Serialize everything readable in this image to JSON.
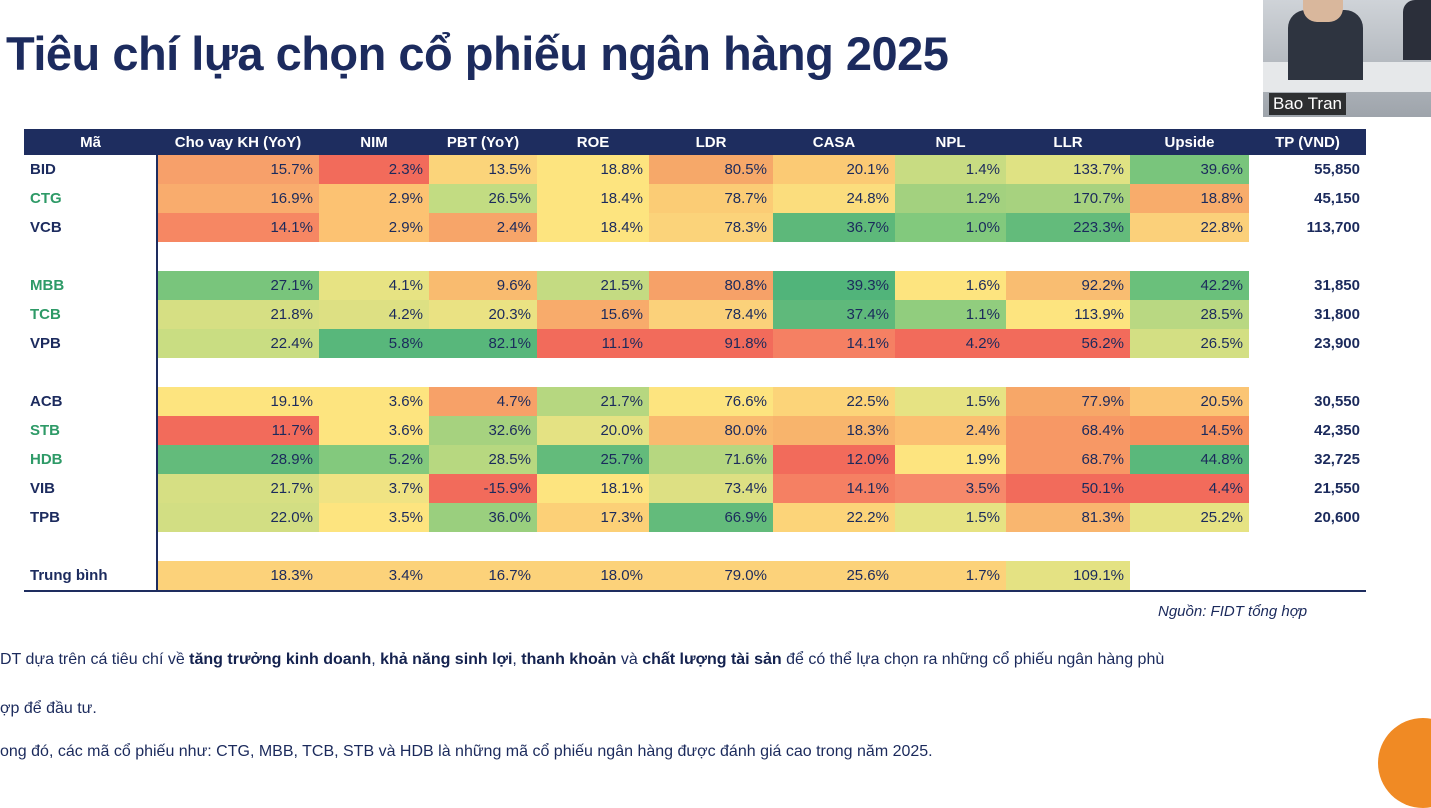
{
  "title": "Tiêu chí lựa chọn cổ phiếu ngân hàng 2025",
  "webcam": {
    "name": "Bao Tran"
  },
  "table": {
    "headers": [
      "Mã",
      "Cho vay KH (YoY)",
      "NIM",
      "PBT (YoY)",
      "ROE",
      "LDR",
      "CASA",
      "NPL",
      "LLR",
      "Upside",
      "TP (VND)"
    ],
    "groups": [
      [
        {
          "code": "BID",
          "code_color": "#1c2b5e",
          "values": [
            "15.7%",
            "2.3%",
            "13.5%",
            "18.8%",
            "80.5%",
            "20.1%",
            "1.4%",
            "133.7%",
            "39.6%"
          ],
          "colors": [
            "#f7a06a",
            "#f26b5b",
            "#fbd47a",
            "#fde47f",
            "#f6a869",
            "#fbca74",
            "#c8dc82",
            "#dfe283",
            "#79c57c"
          ],
          "tp": "55,850"
        },
        {
          "code": "CTG",
          "code_color": "#2e9a67",
          "values": [
            "16.9%",
            "2.9%",
            "26.5%",
            "18.4%",
            "78.7%",
            "24.8%",
            "1.2%",
            "170.7%",
            "18.8%"
          ],
          "colors": [
            "#f9ac6d",
            "#fcc272",
            "#c2dc82",
            "#fde47f",
            "#fbcc75",
            "#fbdd7d",
            "#a3d17f",
            "#a7d27f",
            "#f8ac6b"
          ],
          "tp": "45,150"
        },
        {
          "code": "VCB",
          "code_color": "#1c2b5e",
          "values": [
            "14.1%",
            "2.9%",
            "2.4%",
            "18.4%",
            "78.3%",
            "36.7%",
            "1.0%",
            "223.3%",
            "22.8%"
          ],
          "colors": [
            "#f68763",
            "#fcc272",
            "#f7a569",
            "#fde47f",
            "#fbd37a",
            "#5db87a",
            "#82c97d",
            "#63bb7b",
            "#fbd07a"
          ],
          "tp": "113,700"
        }
      ],
      [
        {
          "code": "MBB",
          "code_color": "#2e9a67",
          "values": [
            "27.1%",
            "4.1%",
            "9.6%",
            "21.5%",
            "80.8%",
            "39.3%",
            "1.6%",
            "92.2%",
            "42.2%"
          ],
          "colors": [
            "#79c57c",
            "#e7e383",
            "#f9bb6f",
            "#c4db82",
            "#f6a168",
            "#51b47a",
            "#fde47f",
            "#f9bd71",
            "#6ac07b"
          ],
          "tp": "31,850"
        },
        {
          "code": "TCB",
          "code_color": "#2e9a67",
          "values": [
            "21.8%",
            "4.2%",
            "20.3%",
            "15.6%",
            "78.4%",
            "37.4%",
            "1.1%",
            "113.9%",
            "28.5%"
          ],
          "colors": [
            "#d6df83",
            "#dde083",
            "#eae283",
            "#f8ab6b",
            "#fbd17a",
            "#5fb97b",
            "#91cd7e",
            "#fde47f",
            "#b9d882"
          ],
          "tp": "31,800"
        },
        {
          "code": "VPB",
          "code_color": "#1c2b5e",
          "values": [
            "22.4%",
            "5.8%",
            "82.1%",
            "11.1%",
            "91.8%",
            "14.1%",
            "4.2%",
            "56.2%",
            "26.5%"
          ],
          "colors": [
            "#c9dd82",
            "#58b77b",
            "#58b77b",
            "#f26b5b",
            "#f26b5b",
            "#f58063",
            "#f26b5b",
            "#f26b5b",
            "#d3df83"
          ],
          "tp": "23,900"
        }
      ],
      [
        {
          "code": "ACB",
          "code_color": "#1c2b5e",
          "values": [
            "19.1%",
            "3.6%",
            "4.7%",
            "21.7%",
            "76.6%",
            "22.5%",
            "1.5%",
            "77.9%",
            "20.5%"
          ],
          "colors": [
            "#fde47f",
            "#fde47f",
            "#f7a168",
            "#b6d780",
            "#fde47f",
            "#fcd479",
            "#e6e383",
            "#f7a768",
            "#fbc574"
          ],
          "tp": "30,550"
        },
        {
          "code": "STB",
          "code_color": "#2e9a67",
          "values": [
            "11.7%",
            "3.6%",
            "32.6%",
            "20.0%",
            "80.0%",
            "18.3%",
            "2.4%",
            "68.4%",
            "14.5%"
          ],
          "colors": [
            "#f26b5b",
            "#fde47f",
            "#a6d27f",
            "#e4e283",
            "#f9ba6f",
            "#f8b46c",
            "#fbbf71",
            "#f79865",
            "#f7925e"
          ],
          "tp": "42,350"
        },
        {
          "code": "HDB",
          "code_color": "#2e9a67",
          "values": [
            "28.9%",
            "5.2%",
            "28.5%",
            "25.7%",
            "71.6%",
            "12.0%",
            "1.9%",
            "68.7%",
            "44.8%"
          ],
          "colors": [
            "#63bb7b",
            "#83c97d",
            "#b7d880",
            "#63bb7b",
            "#b6d780",
            "#f26b5b",
            "#fde47f",
            "#f79865",
            "#5ab87b"
          ],
          "tp": "32,725"
        },
        {
          "code": "VIB",
          "code_color": "#1c2b5e",
          "values": [
            "21.7%",
            "3.7%",
            "-15.9%",
            "18.1%",
            "73.4%",
            "14.1%",
            "3.5%",
            "50.1%",
            "4.4%"
          ],
          "colors": [
            "#d6df83",
            "#f0e383",
            "#f26b5b",
            "#fde47f",
            "#dde083",
            "#f58063",
            "#f6896a",
            "#f26b5b",
            "#f26b5b"
          ],
          "tp": "21,550"
        },
        {
          "code": "TPB",
          "code_color": "#1c2b5e",
          "values": [
            "22.0%",
            "3.5%",
            "36.0%",
            "17.3%",
            "66.9%",
            "22.2%",
            "1.5%",
            "81.3%",
            "25.2%"
          ],
          "colors": [
            "#d2de83",
            "#fde47f",
            "#9acf7e",
            "#fcd077",
            "#63bb7b",
            "#fcd479",
            "#e6e383",
            "#f9b66f",
            "#e6e383"
          ],
          "tp": "20,600"
        }
      ]
    ],
    "average": {
      "code": "Trung bình",
      "values": [
        "18.3%",
        "3.4%",
        "16.7%",
        "18.0%",
        "79.0%",
        "25.6%",
        "1.7%",
        "109.1%"
      ],
      "colors": [
        "#fcd27a",
        "#fcd27a",
        "#fcd27a",
        "#fcd27a",
        "#fcd27a",
        "#fcd27a",
        "#fcd27a",
        "#e4e283"
      ]
    }
  },
  "source": "Nguồn: FIDT tổng hợp",
  "paragraph1": {
    "parts": [
      {
        "text": "DT dựa trên cá tiêu chí về ",
        "bold": false
      },
      {
        "text": "tăng trưởng kinh doanh",
        "bold": true
      },
      {
        "text": ", ",
        "bold": false
      },
      {
        "text": "khả năng sinh lợi",
        "bold": true
      },
      {
        "text": ", ",
        "bold": false
      },
      {
        "text": "thanh khoản",
        "bold": true
      },
      {
        "text": " và ",
        "bold": false
      },
      {
        "text": "chất lượng tài sản",
        "bold": true
      },
      {
        "text": " để có thể lựa chọn ra những cổ phiếu ngân hàng phù",
        "bold": false
      }
    ],
    "line2": "ợp để đầu tư."
  },
  "paragraph2": "ong đó, các mã cổ phiếu như: CTG, MBB, TCB, STB và HDB là những mã cổ phiếu ngân hàng được đánh giá cao trong năm 2025.",
  "colors": {
    "header_bg": "#1e2d5f",
    "title": "#1c2b5e",
    "accent_orange": "#f08a24"
  }
}
